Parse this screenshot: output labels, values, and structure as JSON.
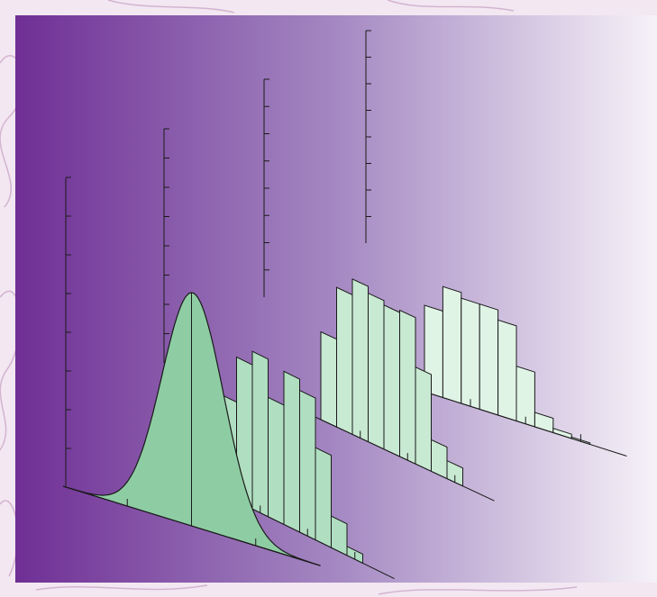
{
  "colors": {
    "outer_background": "#f3e7f1",
    "outer_swirl": "#caa7c8",
    "panel_gradient_left": "#6f2f95",
    "panel_gradient_mid": "#a488c2",
    "panel_gradient_right": "#f6f2f8",
    "front_curve_fill": "#8ecda3",
    "hist_fill_1": "#b0dec0",
    "hist_fill_2": "#c8e9d2",
    "hist_fill_3": "#e0f4e6",
    "stroke": "#1a1a1a"
  },
  "chart_data": {
    "type": "3d-stacked-histograms",
    "description_free": true,
    "front_curve": {
      "kind": "normal-density",
      "x_ticks": 3,
      "y_ticks": 8
    },
    "histograms": [
      {
        "values": [
          0.44,
          0.64,
          0.7,
          0.53,
          0.68,
          0.63,
          0.41,
          0.14,
          0.04
        ]
      },
      {
        "values": [
          0.39,
          0.62,
          0.69,
          0.66,
          0.64,
          0.65,
          0.43,
          0.14,
          0.08
        ]
      },
      {
        "values": [
          0.6,
          0.77,
          0.73,
          0.73,
          0.66,
          0.38,
          0.1,
          0.03,
          0.01
        ]
      }
    ]
  }
}
